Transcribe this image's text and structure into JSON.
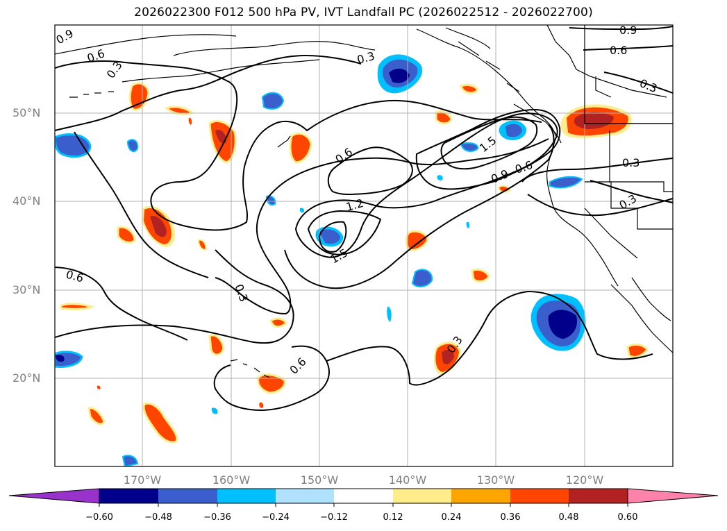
{
  "title": "2026022300 F012 500 hPa PV, IVT Landfall PC (2026022512 - 2026022700)",
  "lat_ticks": [
    "50°N",
    "40°N",
    "30°N",
    "20°N"
  ],
  "lon_ticks": [
    "170°W",
    "160°W",
    "150°W",
    "140°W",
    "130°W",
    "120°W"
  ],
  "colorbar": {
    "labels": [
      "−0.60",
      "−0.48",
      "−0.36",
      "−0.24",
      "−0.12",
      "0.12",
      "0.24",
      "0.36",
      "0.48",
      "0.60"
    ],
    "colors": [
      "#9932CC",
      "#00008B",
      "#3A5FCD",
      "#00BFFF",
      "#B0E2FF",
      "#FFFFFF",
      "#FFEC8B",
      "#FFA500",
      "#FF4500",
      "#B22222",
      "#FF82AB"
    ]
  },
  "contour_labels": [
    "0.9",
    "0.6",
    "0.3",
    "0.9",
    "0.6",
    "0.3",
    "0.3",
    "0.6",
    "1.5",
    "0.9",
    "0.6",
    "0.3",
    "0.3",
    "1.2",
    "1.5",
    "0.6",
    "0.3",
    "0.3",
    "0.6"
  ],
  "palette": {
    "neg_dark": "#00008B",
    "neg_mid": "#3A5FCD",
    "neg_light": "#00BFFF",
    "neg_pale": "#B0E2FF",
    "pos_pale": "#FFEC8B",
    "pos_light": "#FFA500",
    "pos_mid": "#FF4500",
    "pos_dark": "#B22222"
  }
}
